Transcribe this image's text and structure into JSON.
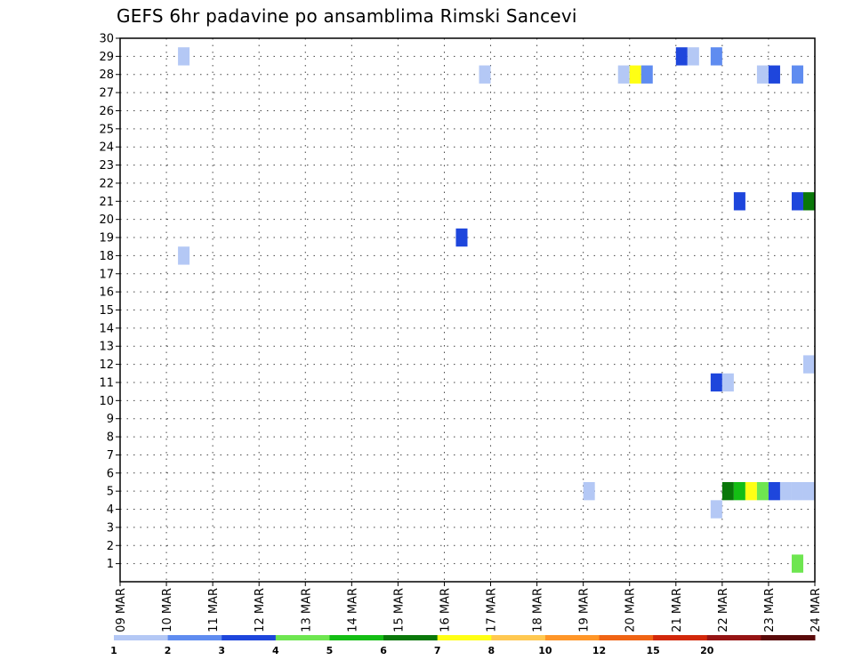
{
  "title": "GEFS 6hr padavine po ansamblima Rimski Sancevi",
  "chart_data": {
    "type": "heatmap",
    "title": "GEFS 6hr padavine po ansamblima Rimski Sancevi",
    "xlabel": "",
    "ylabel": "",
    "x_ticks": [
      "09 MAR",
      "10 MAR",
      "11 MAR",
      "12 MAR",
      "13 MAR",
      "14 MAR",
      "15 MAR",
      "16 MAR",
      "17 MAR",
      "18 MAR",
      "19 MAR",
      "20 MAR",
      "21 MAR",
      "22 MAR",
      "23 MAR",
      "24 MAR"
    ],
    "y_ticks": [
      "1",
      "2",
      "3",
      "4",
      "5",
      "6",
      "7",
      "8",
      "9",
      "10",
      "11",
      "12",
      "13",
      "14",
      "15",
      "16",
      "17",
      "18",
      "19",
      "20",
      "21",
      "22",
      "23",
      "24",
      "25",
      "26",
      "27",
      "28",
      "29",
      "30"
    ],
    "xlim_days": [
      9,
      24
    ],
    "ylim": [
      0,
      30
    ],
    "grid": true,
    "colorbar": {
      "levels": [
        "1",
        "2",
        "3",
        "4",
        "5",
        "6",
        "7",
        "8",
        "10",
        "12",
        "15",
        "20"
      ],
      "colors": [
        "#b4c8f5",
        "#5f8cf0",
        "#1e46dc",
        "#6ee650",
        "#14be14",
        "#0a780a",
        "#ffff14",
        "#ffc850",
        "#ff9628",
        "#f06414",
        "#d2280a",
        "#961414",
        "#5a0a0a"
      ]
    },
    "cells": [
      {
        "member": 29,
        "time": "2019-03-10 06:00",
        "level": 0
      },
      {
        "member": 18,
        "time": "2019-03-10 06:00",
        "level": 0
      },
      {
        "member": 19,
        "time": "2019-03-16 06:00",
        "level": 2
      },
      {
        "member": 28,
        "time": "2019-03-16 18:00",
        "level": 0
      },
      {
        "member": 5,
        "time": "2019-03-19 00:00",
        "level": 0
      },
      {
        "member": 28,
        "time": "2019-03-19 18:00",
        "level": 0
      },
      {
        "member": 28,
        "time": "2019-03-20 00:00",
        "level": 6
      },
      {
        "member": 28,
        "time": "2019-03-20 06:00",
        "level": 1
      },
      {
        "member": 29,
        "time": "2019-03-21 00:00",
        "level": 2
      },
      {
        "member": 29,
        "time": "2019-03-21 06:00",
        "level": 0
      },
      {
        "member": 29,
        "time": "2019-03-21 18:00",
        "level": 1
      },
      {
        "member": 11,
        "time": "2019-03-21 18:00",
        "level": 2
      },
      {
        "member": 11,
        "time": "2019-03-22 00:00",
        "level": 0
      },
      {
        "member": 4,
        "time": "2019-03-21 18:00",
        "level": 0
      },
      {
        "member": 5,
        "time": "2019-03-22 00:00",
        "level": 5
      },
      {
        "member": 5,
        "time": "2019-03-22 06:00",
        "level": 4
      },
      {
        "member": 5,
        "time": "2019-03-22 12:00",
        "level": 6
      },
      {
        "member": 5,
        "time": "2019-03-22 18:00",
        "level": 3
      },
      {
        "member": 5,
        "time": "2019-03-23 00:00",
        "level": 2
      },
      {
        "member": 5,
        "time": "2019-03-23 06:00",
        "level": 0
      },
      {
        "member": 5,
        "time": "2019-03-23 12:00",
        "level": 0
      },
      {
        "member": 5,
        "time": "2019-03-23 18:00",
        "level": 0
      },
      {
        "member": 21,
        "time": "2019-03-22 06:00",
        "level": 2
      },
      {
        "member": 28,
        "time": "2019-03-22 18:00",
        "level": 0
      },
      {
        "member": 28,
        "time": "2019-03-23 00:00",
        "level": 2
      },
      {
        "member": 28,
        "time": "2019-03-23 12:00",
        "level": 1
      },
      {
        "member": 21,
        "time": "2019-03-23 12:00",
        "level": 2
      },
      {
        "member": 21,
        "time": "2019-03-23 18:00",
        "level": 5
      },
      {
        "member": 1,
        "time": "2019-03-23 12:00",
        "level": 3
      },
      {
        "member": 12,
        "time": "2019-03-23 18:00",
        "level": 0
      }
    ]
  }
}
